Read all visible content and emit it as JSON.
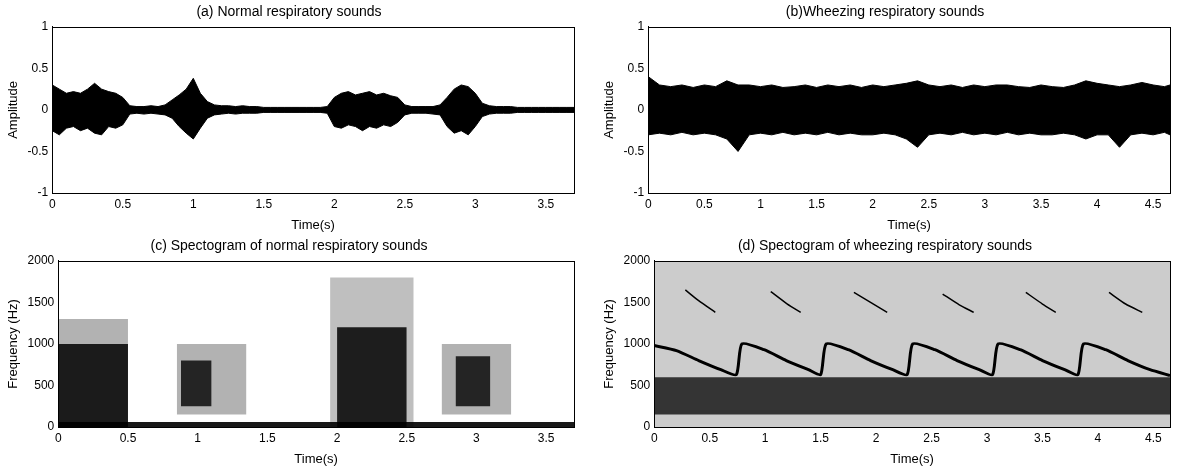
{
  "chart_data": [
    {
      "type": "line",
      "title": "(a) Normal respiratory sounds",
      "x_label": "Time(s)",
      "y_label": "Amplitude",
      "xlim": [
        0,
        3.7
      ],
      "xticks": [
        0,
        0.5,
        1,
        1.5,
        2,
        2.5,
        3,
        3.5
      ],
      "ylim": [
        -1,
        1
      ],
      "yticks": [
        -1,
        -0.5,
        0,
        0.5,
        1
      ],
      "grid": false,
      "color": "#000000",
      "x": [
        0,
        0.05,
        0.1,
        0.15,
        0.2,
        0.25,
        0.3,
        0.35,
        0.4,
        0.45,
        0.5,
        0.55,
        0.6,
        0.65,
        0.7,
        0.75,
        0.8,
        0.85,
        0.9,
        0.95,
        1,
        1.05,
        1.1,
        1.15,
        1.2,
        1.25,
        1.3,
        1.35,
        1.4,
        1.45,
        1.5,
        1.55,
        1.6,
        1.65,
        1.7,
        1.75,
        1.8,
        1.85,
        1.9,
        1.95,
        2,
        2.05,
        2.1,
        2.15,
        2.2,
        2.25,
        2.3,
        2.35,
        2.4,
        2.45,
        2.5,
        2.55,
        2.6,
        2.65,
        2.7,
        2.75,
        2.8,
        2.85,
        2.9,
        2.95,
        3,
        3.05,
        3.1,
        3.15,
        3.2,
        3.25,
        3.3,
        3.35,
        3.4,
        3.45,
        3.5,
        3.55,
        3.6,
        3.65,
        3.7
      ],
      "upper": [
        0.3,
        0.25,
        0.2,
        0.22,
        0.2,
        0.25,
        0.32,
        0.25,
        0.22,
        0.2,
        0.15,
        0.05,
        0.04,
        0.04,
        0.05,
        0.04,
        0.06,
        0.12,
        0.18,
        0.25,
        0.38,
        0.2,
        0.1,
        0.06,
        0.05,
        0.05,
        0.04,
        0.05,
        0.04,
        0.04,
        0.03,
        0.03,
        0.03,
        0.03,
        0.03,
        0.03,
        0.03,
        0.03,
        0.03,
        0.04,
        0.15,
        0.2,
        0.22,
        0.18,
        0.2,
        0.22,
        0.18,
        0.2,
        0.17,
        0.15,
        0.06,
        0.04,
        0.04,
        0.04,
        0.04,
        0.06,
        0.15,
        0.25,
        0.3,
        0.28,
        0.2,
        0.08,
        0.05,
        0.04,
        0.04,
        0.04,
        0.03,
        0.03,
        0.03,
        0.03,
        0.03,
        0.03,
        0.03,
        0.03,
        0.03
      ],
      "lower": [
        -0.25,
        -0.3,
        -0.22,
        -0.2,
        -0.25,
        -0.22,
        -0.28,
        -0.3,
        -0.2,
        -0.22,
        -0.18,
        -0.05,
        -0.04,
        -0.05,
        -0.04,
        -0.05,
        -0.06,
        -0.1,
        -0.2,
        -0.28,
        -0.35,
        -0.22,
        -0.1,
        -0.06,
        -0.05,
        -0.04,
        -0.05,
        -0.04,
        -0.04,
        -0.04,
        -0.03,
        -0.03,
        -0.03,
        -0.03,
        -0.03,
        -0.03,
        -0.03,
        -0.03,
        -0.03,
        -0.04,
        -0.2,
        -0.22,
        -0.18,
        -0.2,
        -0.25,
        -0.2,
        -0.22,
        -0.18,
        -0.2,
        -0.15,
        -0.06,
        -0.04,
        -0.04,
        -0.04,
        -0.05,
        -0.06,
        -0.2,
        -0.28,
        -0.25,
        -0.3,
        -0.2,
        -0.08,
        -0.05,
        -0.04,
        -0.04,
        -0.04,
        -0.03,
        -0.03,
        -0.03,
        -0.03,
        -0.03,
        -0.03,
        -0.03,
        -0.03,
        -0.03
      ]
    },
    {
      "type": "line",
      "title": "(b)Wheezing respiratory sounds",
      "x_label": "Time(s)",
      "y_label": "Amplitude",
      "xlim": [
        0,
        4.65
      ],
      "xticks": [
        0,
        0.5,
        1,
        1.5,
        2,
        2.5,
        3,
        3.5,
        4,
        4.5
      ],
      "ylim": [
        -1,
        1
      ],
      "yticks": [
        -1,
        -0.5,
        0,
        0.5,
        1
      ],
      "grid": false,
      "color": "#000000",
      "x": [
        0,
        0.1,
        0.2,
        0.3,
        0.4,
        0.5,
        0.6,
        0.7,
        0.8,
        0.9,
        1,
        1.1,
        1.2,
        1.3,
        1.4,
        1.5,
        1.6,
        1.7,
        1.8,
        1.9,
        2,
        2.1,
        2.2,
        2.3,
        2.4,
        2.5,
        2.6,
        2.7,
        2.8,
        2.9,
        3,
        3.1,
        3.2,
        3.3,
        3.4,
        3.5,
        3.6,
        3.7,
        3.8,
        3.9,
        4,
        4.1,
        4.2,
        4.3,
        4.4,
        4.5,
        4.6,
        4.65
      ],
      "upper": [
        0.4,
        0.3,
        0.28,
        0.3,
        0.27,
        0.3,
        0.28,
        0.35,
        0.3,
        0.3,
        0.28,
        0.3,
        0.27,
        0.28,
        0.3,
        0.27,
        0.3,
        0.28,
        0.3,
        0.27,
        0.3,
        0.28,
        0.3,
        0.32,
        0.35,
        0.3,
        0.28,
        0.3,
        0.27,
        0.3,
        0.28,
        0.3,
        0.3,
        0.28,
        0.27,
        0.3,
        0.28,
        0.27,
        0.3,
        0.35,
        0.32,
        0.3,
        0.28,
        0.3,
        0.33,
        0.3,
        0.28,
        0.3
      ],
      "lower": [
        -0.3,
        -0.28,
        -0.3,
        -0.27,
        -0.3,
        -0.28,
        -0.3,
        -0.35,
        -0.5,
        -0.3,
        -0.28,
        -0.3,
        -0.27,
        -0.3,
        -0.28,
        -0.3,
        -0.27,
        -0.3,
        -0.28,
        -0.3,
        -0.3,
        -0.28,
        -0.3,
        -0.35,
        -0.45,
        -0.3,
        -0.28,
        -0.3,
        -0.27,
        -0.3,
        -0.28,
        -0.3,
        -0.27,
        -0.3,
        -0.28,
        -0.3,
        -0.3,
        -0.28,
        -0.3,
        -0.35,
        -0.3,
        -0.3,
        -0.45,
        -0.3,
        -0.28,
        -0.3,
        -0.27,
        -0.3
      ]
    },
    {
      "type": "spectrogram",
      "title": "(c) Spectogram of normal respiratory sounds",
      "x_label": "Time(s)",
      "y_label": "Frequency (Hz)",
      "xlim": [
        0,
        3.7
      ],
      "xticks": [
        0,
        0.5,
        1,
        1.5,
        2,
        2.5,
        3,
        3.5
      ],
      "ylim": [
        0,
        2000
      ],
      "yticks": [
        0,
        500,
        1000,
        1500,
        2000
      ],
      "grid": false,
      "color": "#000000",
      "bands": [
        {
          "start": 0,
          "end": 0.5,
          "low": 0,
          "high": 1300,
          "intensity": 0.3
        },
        {
          "start": 0,
          "end": 0.5,
          "low": 0,
          "high": 1000,
          "intensity": 0.85
        },
        {
          "start": 0.85,
          "end": 1.35,
          "low": 150,
          "high": 1000,
          "intensity": 0.3
        },
        {
          "start": 0.88,
          "end": 1.1,
          "low": 250,
          "high": 800,
          "intensity": 0.8
        },
        {
          "start": 1.95,
          "end": 2.55,
          "low": 0,
          "high": 1800,
          "intensity": 0.25
        },
        {
          "start": 2,
          "end": 2.5,
          "low": 0,
          "high": 1200,
          "intensity": 0.85
        },
        {
          "start": 2.75,
          "end": 3.25,
          "low": 150,
          "high": 1000,
          "intensity": 0.3
        },
        {
          "start": 2.85,
          "end": 3.1,
          "low": 250,
          "high": 850,
          "intensity": 0.8
        },
        {
          "start": 0,
          "end": 3.7,
          "low": 0,
          "high": 60,
          "intensity": 0.9
        }
      ],
      "tracks": []
    },
    {
      "type": "spectrogram",
      "title": "(d) Spectogram of wheezing respiratory sounds",
      "x_label": "Time(s)",
      "y_label": "Frequency (Hz)",
      "xlim": [
        0,
        4.65
      ],
      "xticks": [
        0,
        0.5,
        1,
        1.5,
        2,
        2.5,
        3,
        3.5,
        4,
        4.5
      ],
      "ylim": [
        0,
        2000
      ],
      "yticks": [
        0,
        500,
        1000,
        1500,
        2000
      ],
      "grid": false,
      "color": "#000000",
      "bands": [
        {
          "start": 0,
          "end": 4.65,
          "low": 0,
          "high": 2000,
          "intensity": 0.2
        },
        {
          "start": 0,
          "end": 4.65,
          "low": 150,
          "high": 600,
          "intensity": 0.75
        }
      ],
      "tracks": [
        {
          "x": [
            0,
            0.2,
            0.4,
            0.6,
            0.74,
            0.79,
            0.99,
            1.19,
            1.39,
            1.5,
            1.55,
            1.75,
            1.95,
            2.15,
            2.28,
            2.33,
            2.53,
            2.73,
            2.93,
            3.05,
            3.1,
            3.3,
            3.5,
            3.7,
            3.82,
            3.87,
            4.07,
            4.27,
            4.47,
            4.65
          ],
          "values": [
            980,
            920,
            800,
            690,
            630,
            1000,
            930,
            800,
            690,
            630,
            1000,
            930,
            800,
            690,
            630,
            1000,
            930,
            800,
            690,
            630,
            1000,
            930,
            800,
            690,
            630,
            1000,
            930,
            800,
            690,
            620
          ]
        },
        {
          "x": [
            0.28,
            0.4,
            0.55,
            0.8,
            1.05,
            1.2,
            1.32,
            1.6,
            1.8,
            1.95,
            2.1,
            2.35,
            2.6,
            2.75,
            2.88,
            3.1,
            3.35,
            3.5,
            3.62,
            3.9,
            4.1,
            4.25,
            4.4
          ],
          "values": [
            1650,
            1520,
            1380,
            null,
            1630,
            1480,
            1380,
            null,
            1620,
            1500,
            1380,
            null,
            1600,
            1470,
            1380,
            null,
            1620,
            1480,
            1380,
            null,
            1620,
            1480,
            1380
          ]
        }
      ]
    }
  ]
}
